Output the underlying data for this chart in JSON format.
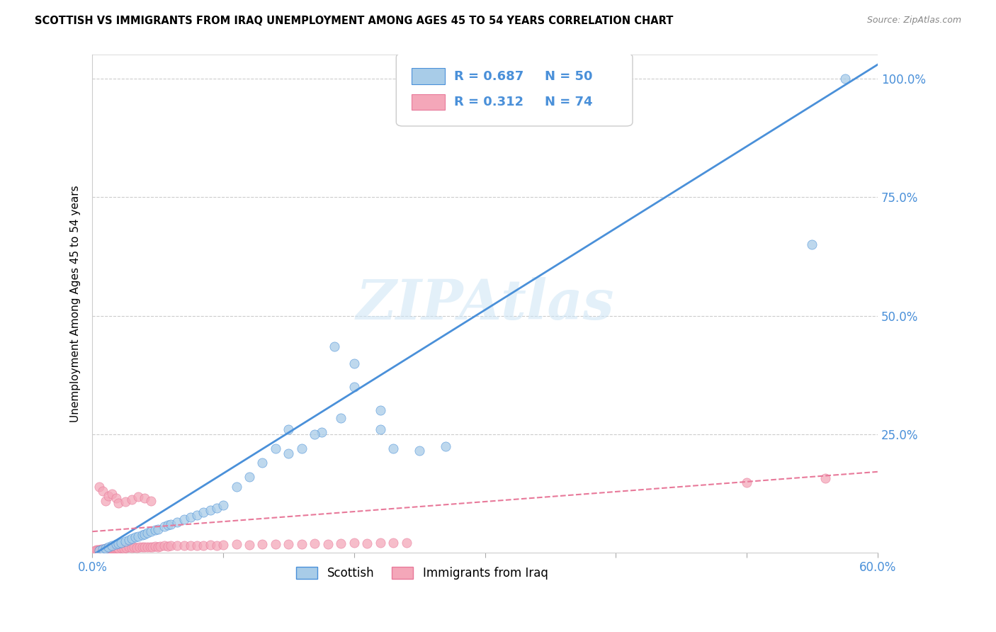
{
  "title": "SCOTTISH VS IMMIGRANTS FROM IRAQ UNEMPLOYMENT AMONG AGES 45 TO 54 YEARS CORRELATION CHART",
  "source": "Source: ZipAtlas.com",
  "ylabel": "Unemployment Among Ages 45 to 54 years",
  "xlim": [
    0.0,
    0.6
  ],
  "ylim": [
    0.0,
    1.05
  ],
  "xtick_positions": [
    0.0,
    0.1,
    0.2,
    0.3,
    0.4,
    0.5,
    0.6
  ],
  "xticklabels": [
    "0.0%",
    "",
    "",
    "",
    "",
    "",
    "60.0%"
  ],
  "ytick_positions": [
    0.0,
    0.25,
    0.5,
    0.75,
    1.0
  ],
  "yticklabels": [
    "",
    "25.0%",
    "50.0%",
    "75.0%",
    "100.0%"
  ],
  "watermark": "ZIPAtlas",
  "legend1_label": "Scottish",
  "legend2_label": "Immigrants from Iraq",
  "R_scottish": 0.687,
  "N_scottish": 50,
  "R_iraq": 0.312,
  "N_iraq": 74,
  "scottish_color": "#a8cce8",
  "iraq_color": "#f4a7b9",
  "scottish_line_color": "#4a90d9",
  "iraq_line_color": "#e8799a",
  "background_color": "#ffffff",
  "sc_line_slope": 1.724,
  "sc_line_intercept": -0.005,
  "iq_line_slope": 0.21,
  "iq_line_intercept": 0.045,
  "scottish_x": [
    0.005,
    0.008,
    0.01,
    0.012,
    0.015,
    0.018,
    0.02,
    0.022,
    0.025,
    0.028,
    0.03,
    0.033,
    0.035,
    0.038,
    0.04,
    0.042,
    0.045,
    0.048,
    0.05,
    0.055,
    0.058,
    0.06,
    0.065,
    0.07,
    0.075,
    0.08,
    0.085,
    0.09,
    0.095,
    0.1,
    0.11,
    0.12,
    0.13,
    0.14,
    0.15,
    0.16,
    0.175,
    0.19,
    0.2,
    0.22,
    0.15,
    0.17,
    0.185,
    0.2,
    0.22,
    0.23,
    0.25,
    0.27,
    0.55,
    0.575
  ],
  "scottish_y": [
    0.005,
    0.008,
    0.01,
    0.012,
    0.015,
    0.018,
    0.02,
    0.022,
    0.025,
    0.028,
    0.03,
    0.033,
    0.035,
    0.038,
    0.04,
    0.042,
    0.045,
    0.048,
    0.05,
    0.055,
    0.058,
    0.06,
    0.065,
    0.07,
    0.075,
    0.08,
    0.085,
    0.09,
    0.095,
    0.1,
    0.14,
    0.16,
    0.19,
    0.22,
    0.26,
    0.22,
    0.255,
    0.285,
    0.35,
    0.3,
    0.21,
    0.25,
    0.435,
    0.4,
    0.26,
    0.22,
    0.215,
    0.225,
    0.65,
    1.0
  ],
  "iraq_x": [
    0.002,
    0.003,
    0.004,
    0.005,
    0.006,
    0.007,
    0.008,
    0.009,
    0.01,
    0.011,
    0.012,
    0.013,
    0.014,
    0.015,
    0.016,
    0.017,
    0.018,
    0.019,
    0.02,
    0.022,
    0.024,
    0.026,
    0.028,
    0.03,
    0.032,
    0.034,
    0.036,
    0.038,
    0.04,
    0.042,
    0.044,
    0.046,
    0.048,
    0.05,
    0.052,
    0.055,
    0.058,
    0.06,
    0.065,
    0.07,
    0.075,
    0.08,
    0.085,
    0.09,
    0.095,
    0.1,
    0.11,
    0.12,
    0.13,
    0.14,
    0.15,
    0.16,
    0.17,
    0.18,
    0.19,
    0.2,
    0.21,
    0.22,
    0.23,
    0.24,
    0.005,
    0.008,
    0.01,
    0.012,
    0.015,
    0.018,
    0.02,
    0.025,
    0.03,
    0.035,
    0.04,
    0.045,
    0.5,
    0.56
  ],
  "iraq_y": [
    0.005,
    0.006,
    0.007,
    0.006,
    0.007,
    0.008,
    0.007,
    0.008,
    0.009,
    0.008,
    0.009,
    0.008,
    0.01,
    0.009,
    0.01,
    0.009,
    0.01,
    0.011,
    0.01,
    0.011,
    0.01,
    0.011,
    0.012,
    0.011,
    0.012,
    0.011,
    0.012,
    0.013,
    0.012,
    0.013,
    0.012,
    0.013,
    0.014,
    0.013,
    0.014,
    0.015,
    0.014,
    0.015,
    0.016,
    0.015,
    0.016,
    0.015,
    0.016,
    0.017,
    0.016,
    0.017,
    0.018,
    0.017,
    0.018,
    0.019,
    0.018,
    0.019,
    0.02,
    0.019,
    0.02,
    0.021,
    0.02,
    0.021,
    0.022,
    0.021,
    0.14,
    0.13,
    0.11,
    0.12,
    0.125,
    0.115,
    0.105,
    0.108,
    0.112,
    0.118,
    0.115,
    0.11,
    0.148,
    0.158
  ]
}
